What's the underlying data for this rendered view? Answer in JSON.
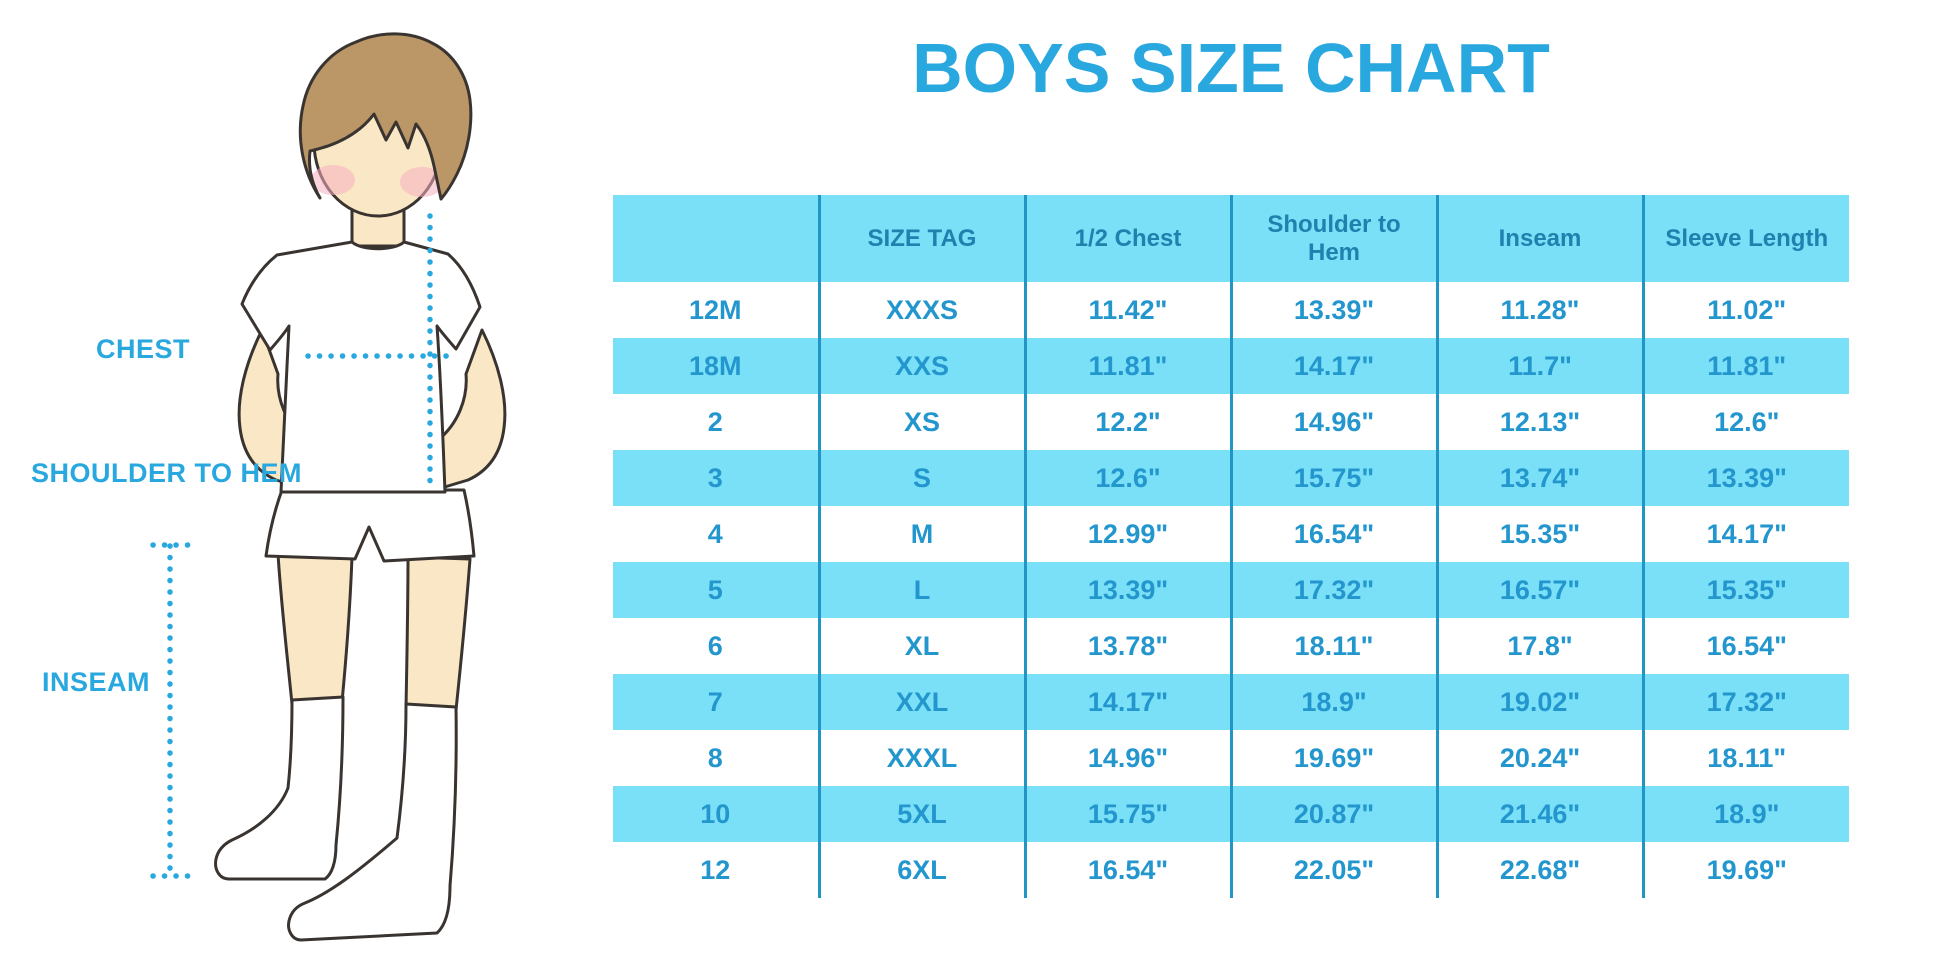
{
  "title": "BOYS SIZE CHART",
  "labels": {
    "chest": "CHEST",
    "shoulder_to_hem": "SHOULDER TO HEM",
    "inseam": "INSEAM"
  },
  "colors": {
    "accent": "#29A8DF",
    "table_stripe": "#79E0F8",
    "header_text": "#1E81AE",
    "cell_text": "#2396CE",
    "divider": "#2196C4",
    "skin": "#FAE7C5",
    "hair": "#BB9768",
    "outline": "#3A3431",
    "blush": "#F5AFC0"
  },
  "chart_data": {
    "type": "table",
    "title": "BOYS SIZE CHART",
    "columns": [
      "",
      "SIZE TAG",
      "1/2 Chest",
      "Shoulder to Hem",
      "Inseam",
      "Sleeve Length"
    ],
    "rows": [
      [
        "12M",
        "XXXS",
        "11.42\"",
        "13.39\"",
        "11.28\"",
        "11.02\""
      ],
      [
        "18M",
        "XXS",
        "11.81\"",
        "14.17\"",
        "11.7\"",
        "11.81\""
      ],
      [
        "2",
        "XS",
        "12.2\"",
        "14.96\"",
        "12.13\"",
        "12.6\""
      ],
      [
        "3",
        "S",
        "12.6\"",
        "15.75\"",
        "13.74\"",
        "13.39\""
      ],
      [
        "4",
        "M",
        "12.99\"",
        "16.54\"",
        "15.35\"",
        "14.17\""
      ],
      [
        "5",
        "L",
        "13.39\"",
        "17.32\"",
        "16.57\"",
        "15.35\""
      ],
      [
        "6",
        "XL",
        "13.78\"",
        "18.11\"",
        "17.8\"",
        "16.54\""
      ],
      [
        "7",
        "XXL",
        "14.17\"",
        "18.9\"",
        "19.02\"",
        "17.32\""
      ],
      [
        "8",
        "XXXL",
        "14.96\"",
        "19.69\"",
        "20.24\"",
        "18.11\""
      ],
      [
        "10",
        "5XL",
        "15.75\"",
        "20.87\"",
        "21.46\"",
        "18.9\""
      ],
      [
        "12",
        "6XL",
        "16.54\"",
        "22.05\"",
        "22.68\"",
        "19.69\""
      ]
    ]
  }
}
